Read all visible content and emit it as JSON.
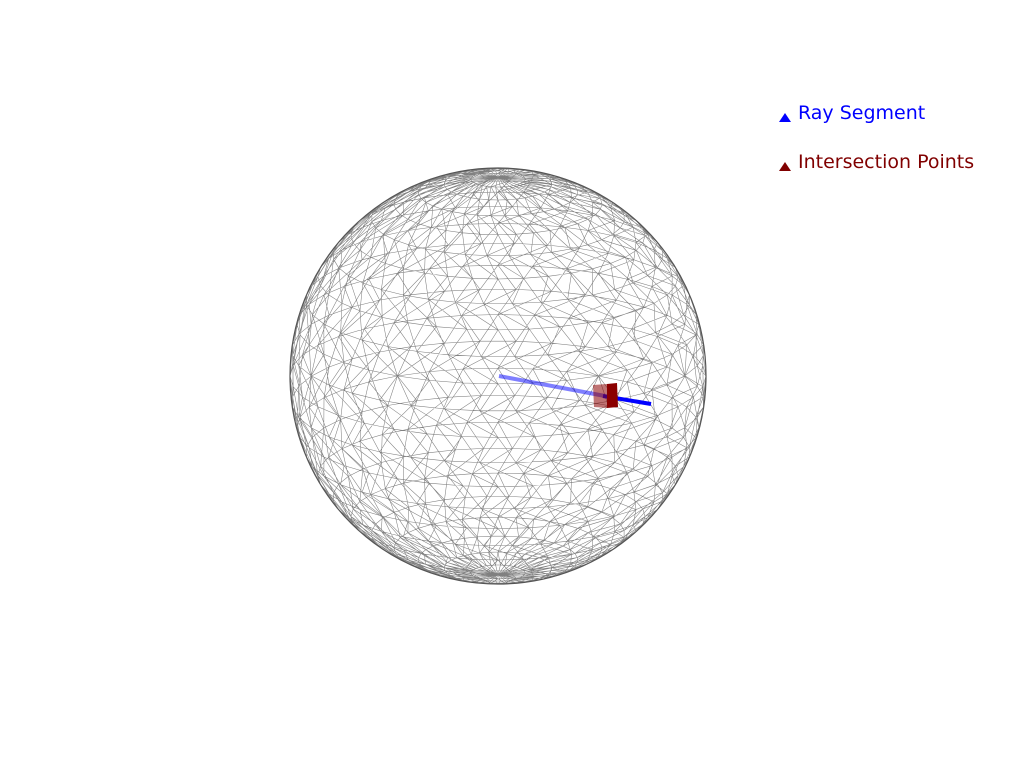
{
  "legend": {
    "entries": [
      {
        "label": "Ray Segment",
        "color": "#0000ff",
        "marker": "triangle-icon"
      },
      {
        "label": "Intersection Points",
        "color": "#800000",
        "marker": "triangle-icon"
      }
    ]
  },
  "scene": {
    "sphere": {
      "style": "wireframe",
      "color": "#555555"
    },
    "ray": {
      "color": "#0000ff"
    },
    "intersection_marker": {
      "color": "#8b0000"
    }
  }
}
